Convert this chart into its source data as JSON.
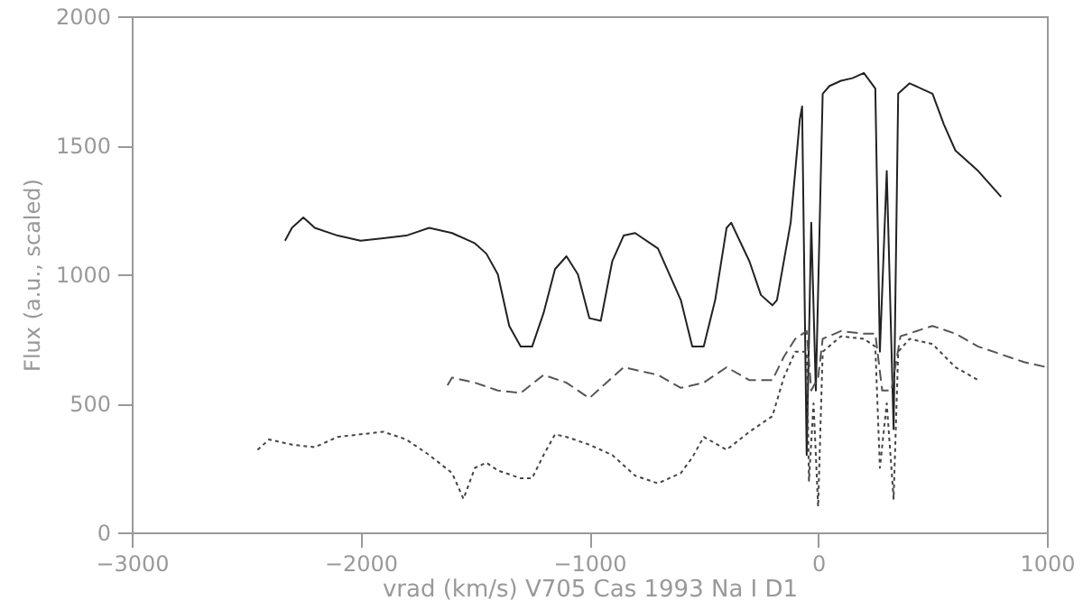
{
  "chart_data": {
    "type": "line",
    "xlabel": "vrad (km/s)  V705 Cas 1993  Na I D1",
    "ylabel": "Flux (a.u., scaled)",
    "xlim": [
      -3000,
      1000
    ],
    "xticks": [
      -3000,
      -2000,
      -1000,
      0,
      1000
    ],
    "ylim": [
      0,
      2000
    ],
    "yticks": [
      0,
      500,
      1000,
      1500,
      2000
    ],
    "grid": false,
    "series": [
      {
        "color": "#222222",
        "line_style": "solid",
        "x": [
          -2330,
          -2300,
          -2250,
          -2200,
          -2100,
          -2000,
          -1900,
          -1800,
          -1700,
          -1600,
          -1500,
          -1450,
          -1400,
          -1350,
          -1300,
          -1250,
          -1200,
          -1150,
          -1100,
          -1050,
          -1000,
          -950,
          -900,
          -850,
          -800,
          -700,
          -600,
          -550,
          -500,
          -450,
          -400,
          -380,
          -300,
          -250,
          -200,
          -180,
          -120,
          -80,
          -70,
          -50,
          -30,
          -10,
          20,
          50,
          100,
          150,
          200,
          250,
          270,
          300,
          330,
          350,
          400,
          450,
          500,
          550,
          600,
          700,
          800
        ],
        "values": [
          1130,
          1180,
          1220,
          1180,
          1150,
          1130,
          1140,
          1150,
          1180,
          1160,
          1120,
          1080,
          1000,
          800,
          720,
          720,
          850,
          1020,
          1070,
          1000,
          830,
          820,
          1050,
          1150,
          1160,
          1100,
          900,
          720,
          720,
          900,
          1180,
          1200,
          1050,
          920,
          880,
          900,
          1200,
          1600,
          1650,
          300,
          1200,
          550,
          1700,
          1730,
          1750,
          1760,
          1780,
          1720,
          700,
          1400,
          400,
          1700,
          1740,
          1720,
          1700,
          1580,
          1480,
          1400,
          1300
        ]
      },
      {
        "color": "#555555",
        "line_style": "dashed",
        "x": [
          -1620,
          -1600,
          -1500,
          -1400,
          -1300,
          -1200,
          -1100,
          -1000,
          -950,
          -850,
          -700,
          -600,
          -500,
          -400,
          -300,
          -200,
          -150,
          -100,
          -50,
          -30,
          0,
          20,
          100,
          200,
          250,
          280,
          320,
          360,
          500,
          600,
          700,
          800,
          900,
          1000
        ],
        "values": [
          570,
          600,
          580,
          550,
          540,
          610,
          580,
          520,
          560,
          640,
          610,
          560,
          580,
          640,
          590,
          590,
          680,
          750,
          780,
          550,
          600,
          750,
          780,
          770,
          770,
          550,
          550,
          760,
          800,
          770,
          720,
          690,
          660,
          640
        ]
      },
      {
        "color": "#444444",
        "line_style": "dotted",
        "x": [
          -2450,
          -2400,
          -2300,
          -2200,
          -2100,
          -2000,
          -1900,
          -1800,
          -1700,
          -1600,
          -1550,
          -1500,
          -1450,
          -1400,
          -1300,
          -1250,
          -1200,
          -1150,
          -1100,
          -1000,
          -900,
          -800,
          -700,
          -600,
          -550,
          -500,
          -400,
          -300,
          -200,
          -150,
          -100,
          -50,
          -40,
          -20,
          0,
          20,
          100,
          200,
          250,
          270,
          300,
          330,
          350,
          400,
          500,
          600,
          700
        ],
        "values": [
          320,
          360,
          340,
          330,
          370,
          380,
          390,
          360,
          300,
          230,
          130,
          250,
          270,
          240,
          210,
          210,
          300,
          380,
          370,
          340,
          300,
          220,
          190,
          230,
          290,
          370,
          320,
          390,
          450,
          600,
          700,
          700,
          200,
          500,
          100,
          700,
          760,
          750,
          720,
          250,
          500,
          130,
          700,
          750,
          730,
          640,
          590
        ]
      }
    ]
  }
}
